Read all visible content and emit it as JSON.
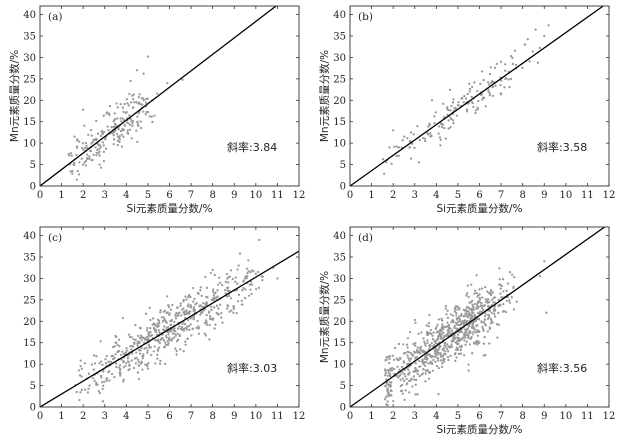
{
  "chart_data": [
    {
      "type": "scatter",
      "panel_label": "(a)",
      "xlabel": "Si元素质量分数/%",
      "ylabel": "Mn元素质量分数/%",
      "xlim": [
        0,
        12
      ],
      "ylim": [
        0,
        42
      ],
      "xticks": [
        "0",
        "1",
        "2",
        "3",
        "4",
        "5",
        "6",
        "7",
        "8",
        "9",
        "10",
        "11",
        "12"
      ],
      "yticks": [
        "0",
        "5",
        "10",
        "15",
        "20",
        "25",
        "30",
        "35",
        "40"
      ],
      "slope_text": "斜率:3.84",
      "fit": {
        "slope": 3.84,
        "intercept": 0
      },
      "cloud": {
        "n": 220,
        "x_min": 1.3,
        "x_max": 6.3,
        "x_mode": 3.0,
        "spread": 2.6,
        "seed": 11
      },
      "points": [
        [
          4.5,
          27.0
        ],
        [
          4.8,
          26.2
        ],
        [
          5.0,
          30.2
        ],
        [
          4.2,
          24.5
        ],
        [
          1.6,
          11.5
        ],
        [
          2.0,
          17.8
        ],
        [
          5.9,
          24.0
        ],
        [
          6.6,
          24.8
        ],
        [
          1.5,
          3.5
        ],
        [
          3.8,
          9.2
        ]
      ]
    },
    {
      "type": "scatter",
      "panel_label": "(b)",
      "xlabel": "Si元素质量分数/%",
      "ylabel": "Mn元素质量分数/%",
      "xlim": [
        0,
        12
      ],
      "ylim": [
        0,
        42
      ],
      "xticks": [
        "0",
        "1",
        "2",
        "3",
        "4",
        "5",
        "6",
        "7",
        "8",
        "9",
        "10",
        "11",
        "12"
      ],
      "yticks": [
        "0",
        "5",
        "10",
        "15",
        "20",
        "25",
        "30",
        "35",
        "40"
      ],
      "slope_text": "斜率:3.58",
      "fit": {
        "slope": 3.58,
        "intercept": 0
      },
      "cloud": {
        "n": 170,
        "x_min": 1.5,
        "x_max": 9.6,
        "x_mode": 5.0,
        "spread": 1.9,
        "seed": 23
      },
      "points": [
        [
          8.6,
          36.5
        ],
        [
          9.2,
          37.5
        ],
        [
          9.0,
          35.0
        ],
        [
          8.1,
          33.0
        ],
        [
          3.8,
          20.0
        ],
        [
          6.8,
          28.5
        ],
        [
          2.0,
          13.0
        ],
        [
          3.2,
          5.5
        ]
      ]
    },
    {
      "type": "scatter",
      "panel_label": "(c)",
      "xlabel": "",
      "ylabel": "",
      "xlim": [
        0,
        12
      ],
      "ylim": [
        0,
        42
      ],
      "xticks": [
        "0",
        "1",
        "2",
        "3",
        "4",
        "5",
        "6",
        "7",
        "8",
        "9",
        "10",
        "11",
        "12"
      ],
      "yticks": [
        "0",
        "5",
        "10",
        "15",
        "20",
        "25",
        "30",
        "35",
        "40"
      ],
      "slope_text": "斜率:3.03",
      "fit": {
        "slope": 3.03,
        "intercept": 0
      },
      "cloud": {
        "n": 600,
        "x_min": 1.6,
        "x_max": 11.1,
        "x_mode": 6.0,
        "spread": 3.0,
        "seed": 37
      },
      "points": [
        [
          8.0,
          32.0
        ],
        [
          9.2,
          33.0
        ],
        [
          10.1,
          31.5
        ],
        [
          10.8,
          32.5
        ],
        [
          11.0,
          30.0
        ],
        [
          1.7,
          3.5
        ],
        [
          2.3,
          5.0
        ]
      ]
    },
    {
      "type": "scatter",
      "panel_label": "(d)",
      "xlabel": "Si元素质量分数/%",
      "ylabel": "Mn元素质量分数/%",
      "xlim": [
        0,
        12
      ],
      "ylim": [
        0,
        42
      ],
      "xticks": [
        "0",
        "1",
        "2",
        "3",
        "4",
        "5",
        "6",
        "7",
        "8",
        "9",
        "10",
        "11",
        "12"
      ],
      "yticks": [
        "0",
        "5",
        "10",
        "15",
        "20",
        "25",
        "30",
        "35",
        "40"
      ],
      "slope_text": "斜率:3.56",
      "fit": {
        "slope": 3.56,
        "intercept": 0
      },
      "cloud": {
        "n": 800,
        "x_min": 1.6,
        "x_max": 9.2,
        "x_mode": 4.0,
        "spread": 3.2,
        "seed": 51
      },
      "points": [
        [
          9.0,
          34.0
        ],
        [
          8.8,
          30.5
        ],
        [
          9.1,
          22.0
        ],
        [
          7.1,
          24.0
        ],
        [
          6.2,
          12.0
        ],
        [
          5.5,
          8.5
        ],
        [
          4.1,
          3.0
        ],
        [
          1.8,
          2.5
        ]
      ]
    }
  ]
}
